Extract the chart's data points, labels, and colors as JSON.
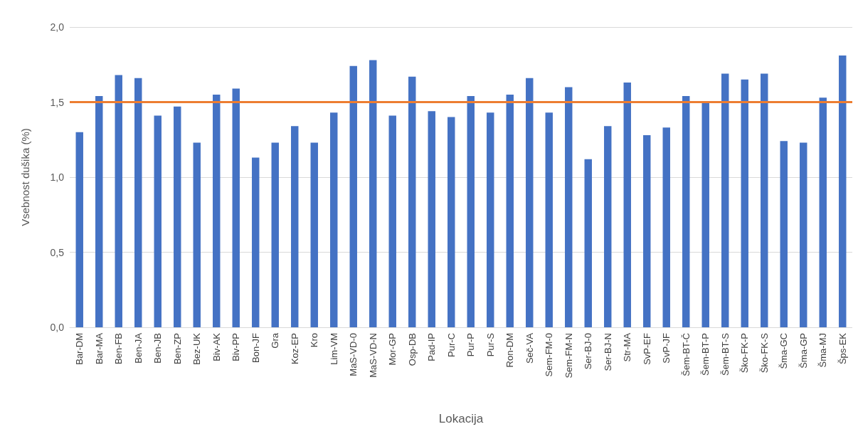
{
  "chart_data": {
    "type": "bar",
    "xlabel": "Lokacija",
    "ylabel": "Vsebnost dušika (%)",
    "categories": [
      "Bar-DM",
      "Bar-MA",
      "Ben-FB",
      "Ben-JA",
      "Ben-JB",
      "Ben-ZP",
      "Bez-UK",
      "Biv-AK",
      "Biv-PP",
      "Bon-JF",
      "Gra",
      "Koz-EP",
      "Kro",
      "Lim-VM",
      "MaS-VD-0",
      "MaS-VD-N",
      "Mor-GP",
      "Osp-DB",
      "Pad-IP",
      "Pur-C",
      "Pur-P",
      "Pur-S",
      "Ron-DM",
      "Seč-VA",
      "Sem-FM-0",
      "Sem-FM-N",
      "Ser-BJ-0",
      "Ser-BJ-N",
      "Str-MA",
      "SvP-EF",
      "SvP-JF",
      "Šem-BT-Č",
      "Šem-BT-P",
      "Šem-BT-S",
      "Ško-FK-P",
      "Ško-FK-S",
      "Šma-GC",
      "Šma-GP",
      "Šma-MJ",
      "Šps-EK"
    ],
    "values": [
      1.3,
      1.54,
      1.68,
      1.66,
      1.41,
      1.47,
      1.23,
      1.55,
      1.59,
      1.13,
      1.23,
      1.34,
      1.23,
      1.43,
      1.74,
      1.78,
      1.41,
      1.67,
      1.44,
      1.4,
      1.54,
      1.43,
      1.55,
      1.66,
      1.43,
      1.6,
      1.12,
      1.34,
      1.63,
      1.28,
      1.33,
      1.54,
      1.5,
      1.69,
      1.65,
      1.69,
      1.24,
      1.23,
      1.53,
      1.81
    ],
    "color": "#4472c4",
    "ylim": [
      0,
      2
    ],
    "yticks": [
      {
        "value": 0,
        "label": "0,0"
      },
      {
        "value": 0.5,
        "label": "0,5"
      },
      {
        "value": 1,
        "label": "1,0"
      },
      {
        "value": 1.5,
        "label": "1,5"
      },
      {
        "value": 2,
        "label": "2,0"
      }
    ],
    "grid": "y",
    "ref_lines": [
      {
        "axis": "y",
        "value": 1.5,
        "label": null,
        "color": "#ed7d31"
      }
    ]
  }
}
